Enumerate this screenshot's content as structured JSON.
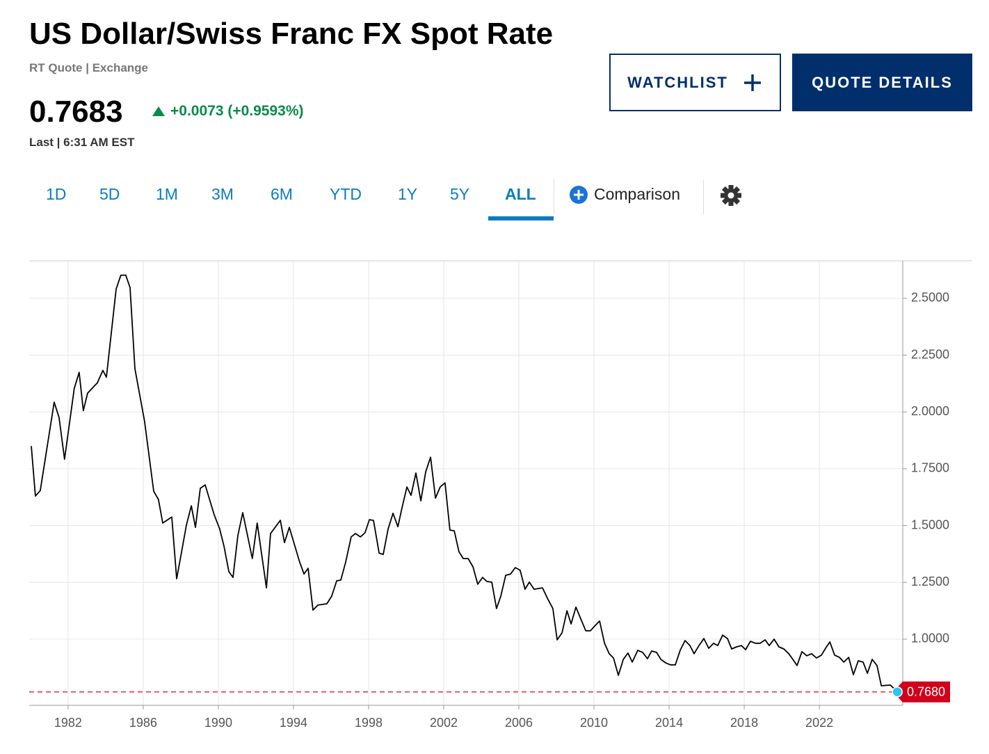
{
  "header": {
    "title": "US Dollar/Swiss Franc FX Spot Rate",
    "source": "RT Quote | Exchange",
    "price": "0.7683",
    "change": "+0.0073 (+0.9593%)",
    "last": "Last | 6:31 AM EST"
  },
  "buttons": {
    "watchlist": "WATCHLIST",
    "quote_details": "QUOTE DETAILS"
  },
  "tabs": [
    "1D",
    "5D",
    "1M",
    "3M",
    "6M",
    "YTD",
    "1Y",
    "5Y",
    "ALL"
  ],
  "active_tab": "ALL",
  "comparison": "Comparison",
  "chart_data": {
    "type": "line",
    "color": "#000000",
    "grid": true,
    "xlim": [
      1979.93,
      2026.44
    ],
    "ylim": [
      0.709,
      2.665
    ],
    "xticks": [
      1982,
      1986,
      1990,
      1994,
      1998,
      2002,
      2006,
      2010,
      2014,
      2018,
      2022
    ],
    "yticks": [
      {
        "value": 1.0,
        "label": "1.0000"
      },
      {
        "value": 1.25,
        "label": "1.2500"
      },
      {
        "value": 1.5,
        "label": "1.5000"
      },
      {
        "value": 1.75,
        "label": "1.7500"
      },
      {
        "value": 2.0,
        "label": "2.0000"
      },
      {
        "value": 2.25,
        "label": "2.2500"
      },
      {
        "value": 2.5,
        "label": "2.5000"
      }
    ],
    "last_value": 0.768,
    "last_value_label": "0.7680",
    "x": [
      1980.04,
      1980.26,
      1980.52,
      1981.26,
      1981.52,
      1981.81,
      1982.33,
      1982.59,
      1982.81,
      1983.04,
      1983.56,
      1983.85,
      1984.04,
      1984.56,
      1984.81,
      1985.07,
      1985.3,
      1985.56,
      1986.07,
      1986.56,
      1986.81,
      1987.04,
      1987.52,
      1987.78,
      1988.0,
      1988.3,
      1988.56,
      1988.78,
      1989.04,
      1989.3,
      1989.78,
      1990.07,
      1990.3,
      1990.56,
      1990.78,
      1991.04,
      1991.3,
      1991.81,
      1992.07,
      1992.56,
      1992.78,
      1993.3,
      1993.52,
      1993.78,
      1994.33,
      1994.56,
      1994.78,
      1995.04,
      1995.3,
      1995.78,
      1996.04,
      1996.3,
      1996.52,
      1996.78,
      1997.07,
      1997.3,
      1997.56,
      1997.81,
      1998.04,
      1998.26,
      1998.56,
      1998.78,
      1999.04,
      1999.3,
      1999.56,
      1999.78,
      2000.04,
      2000.26,
      2000.52,
      2000.78,
      2001.04,
      2001.3,
      2001.56,
      2001.81,
      2002.07,
      2002.33,
      2002.56,
      2002.81,
      2003.04,
      2003.3,
      2003.56,
      2003.81,
      2004.07,
      2004.3,
      2004.56,
      2004.81,
      2005.04,
      2005.3,
      2005.56,
      2005.81,
      2006.07,
      2006.33,
      2006.56,
      2006.81,
      2007.26,
      2007.56,
      2007.81,
      2008.04,
      2008.3,
      2008.56,
      2008.78,
      2009.04,
      2009.3,
      2009.56,
      2009.81,
      2010.04,
      2010.3,
      2010.56,
      2010.81,
      2011.04,
      2011.3,
      2011.56,
      2011.81,
      2012.04,
      2012.33,
      2012.59,
      2012.85,
      2013.07,
      2013.33,
      2013.56,
      2013.81,
      2014.07,
      2014.33,
      2014.59,
      2014.85,
      2015.11,
      2015.33,
      2015.59,
      2015.85,
      2016.11,
      2016.37,
      2016.59,
      2016.85,
      2017.11,
      2017.33,
      2017.59,
      2017.85,
      2018.07,
      2018.33,
      2018.59,
      2018.85,
      2019.11,
      2019.33,
      2019.59,
      2019.85,
      2020.11,
      2020.37,
      2020.59,
      2020.81,
      2021.07,
      2021.33,
      2021.59,
      2021.85,
      2022.11,
      2022.33,
      2022.56,
      2022.81,
      2023.07,
      2023.3,
      2023.56,
      2023.81,
      2024.07,
      2024.33,
      2024.56,
      2024.81,
      2025.07,
      2025.3,
      2025.78,
      2026.15
    ],
    "values": [
      1.85,
      1.63,
      1.654,
      2.043,
      1.976,
      1.792,
      2.104,
      2.174,
      2.006,
      2.083,
      2.128,
      2.183,
      2.153,
      2.541,
      2.602,
      2.602,
      2.547,
      2.19,
      1.96,
      1.651,
      1.615,
      1.511,
      1.538,
      1.266,
      1.364,
      1.502,
      1.587,
      1.492,
      1.664,
      1.679,
      1.547,
      1.486,
      1.41,
      1.297,
      1.272,
      1.456,
      1.557,
      1.355,
      1.511,
      1.226,
      1.465,
      1.523,
      1.425,
      1.492,
      1.339,
      1.287,
      1.312,
      1.128,
      1.15,
      1.156,
      1.19,
      1.257,
      1.26,
      1.339,
      1.45,
      1.465,
      1.45,
      1.468,
      1.526,
      1.523,
      1.379,
      1.373,
      1.486,
      1.554,
      1.495,
      1.578,
      1.67,
      1.633,
      1.731,
      1.609,
      1.737,
      1.801,
      1.621,
      1.67,
      1.688,
      1.48,
      1.477,
      1.385,
      1.355,
      1.355,
      1.318,
      1.242,
      1.272,
      1.254,
      1.251,
      1.135,
      1.19,
      1.281,
      1.287,
      1.315,
      1.303,
      1.22,
      1.251,
      1.22,
      1.226,
      1.174,
      1.135,
      0.997,
      1.028,
      1.125,
      1.067,
      1.141,
      1.089,
      1.037,
      1.037,
      1.058,
      1.08,
      0.982,
      0.936,
      0.917,
      0.841,
      0.911,
      0.939,
      0.899,
      0.951,
      0.942,
      0.914,
      0.948,
      0.942,
      0.911,
      0.896,
      0.887,
      0.887,
      0.951,
      0.994,
      0.972,
      0.936,
      0.972,
      1.003,
      0.96,
      0.982,
      0.972,
      1.018,
      1.003,
      0.957,
      0.966,
      0.972,
      0.954,
      0.991,
      0.982,
      0.982,
      0.997,
      0.972,
      1.0,
      0.966,
      0.957,
      0.936,
      0.911,
      0.884,
      0.945,
      0.927,
      0.936,
      0.917,
      0.93,
      0.96,
      0.988,
      0.93,
      0.92,
      0.899,
      0.92,
      0.844,
      0.905,
      0.899,
      0.85,
      0.911,
      0.884,
      0.795,
      0.798,
      0.768
    ]
  }
}
